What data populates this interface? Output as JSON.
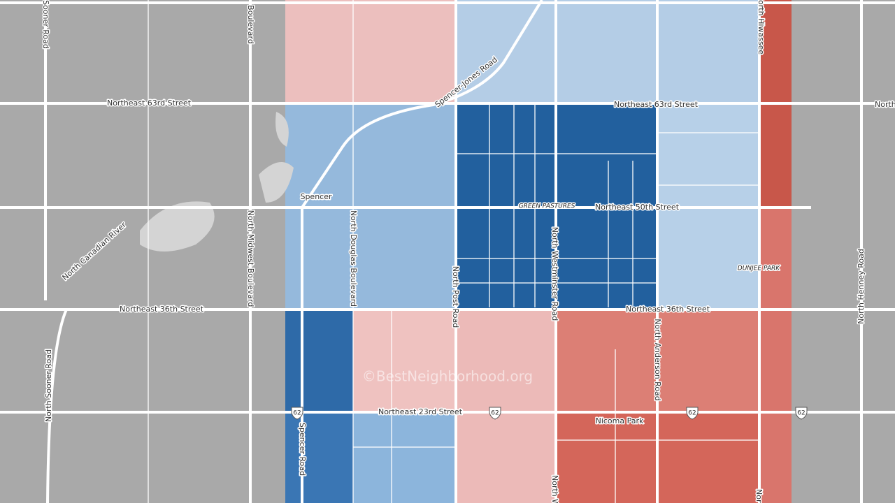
{
  "map": {
    "roads": [
      "Sooner Road",
      "Boulevard",
      "North Hiwassee",
      "Spencer-Jones Road",
      "Northeast 63rd Street",
      "Northeast 63rd Street",
      "Northeast",
      "Northeast 50th Street",
      "North Canadian River",
      "North Midwest Boulevard",
      "North Douglas Boulevard",
      "North Post Road",
      "North Westminster Road",
      "North Henney Road",
      "Northeast 36th Street",
      "Northeast 36th Street",
      "North Anderson Road",
      "North Sooner Road",
      "Spencer Road",
      "Northeast 23rd Street",
      "North W",
      "Nor"
    ],
    "places": [
      "Spencer",
      "GREEN PASTURES",
      "DUNJEE PARK",
      "Nicoma Park"
    ],
    "shields": [
      "62",
      "62",
      "62",
      "62"
    ],
    "watermark": "©BestNeighborhood.org"
  }
}
